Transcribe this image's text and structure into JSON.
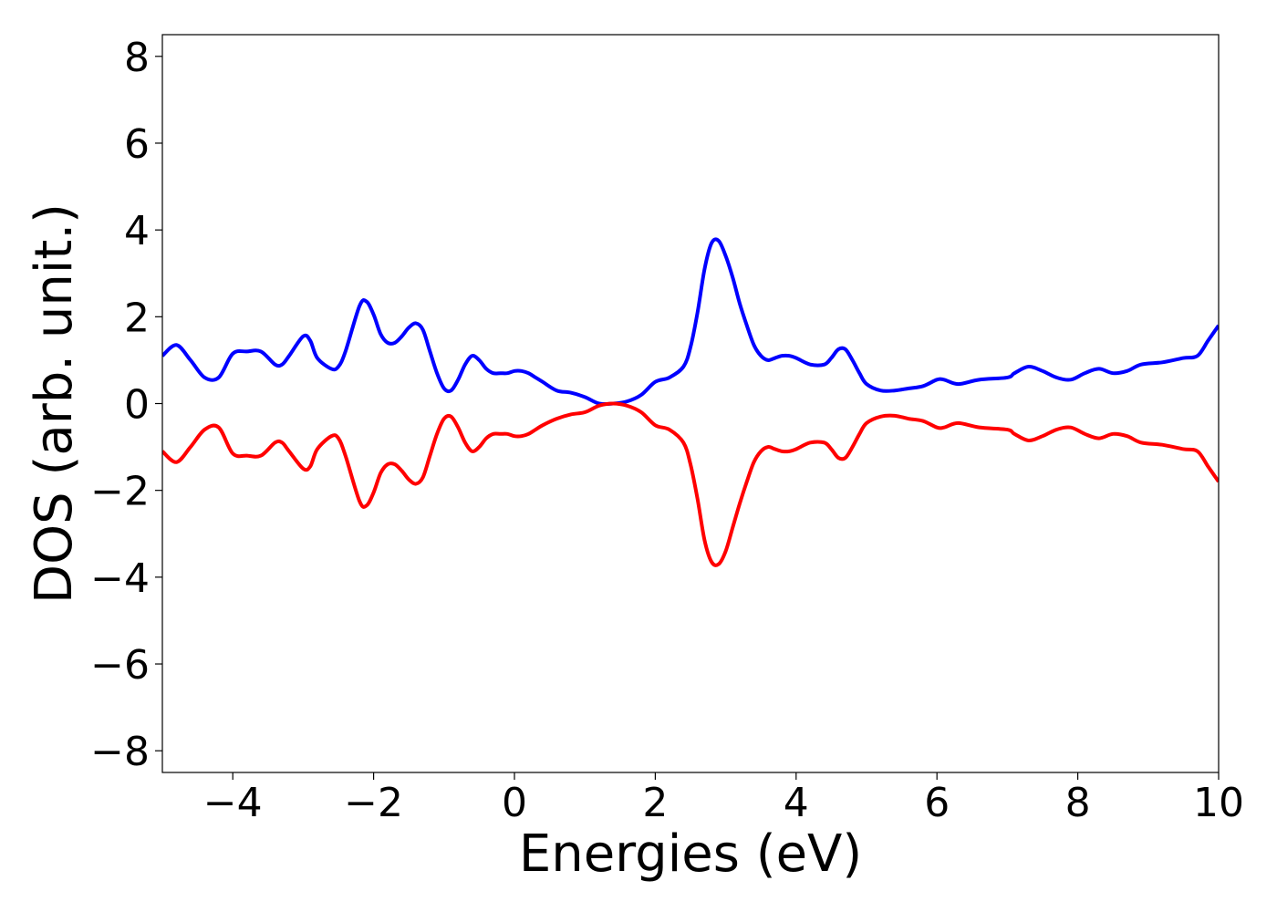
{
  "chart_data": {
    "type": "line",
    "title": "",
    "xlabel": "Energies (eV)",
    "ylabel": "DOS (arb. unit.)",
    "xlim": [
      -5,
      10
    ],
    "ylim": [
      -8.5,
      8.5
    ],
    "xticks": [
      -4,
      -2,
      0,
      2,
      4,
      6,
      8,
      10
    ],
    "xtick_labels": [
      "−4",
      "−2",
      "0",
      "2",
      "4",
      "6",
      "8",
      "10"
    ],
    "yticks": [
      8,
      6,
      4,
      2,
      0,
      -2,
      -4,
      -6,
      -8
    ],
    "ytick_labels": [
      "8",
      "6",
      "4",
      "2",
      "0",
      "−2",
      "−4",
      "−6",
      "−8"
    ],
    "grid": false,
    "legend": "none",
    "series": [
      {
        "color": "#0000ff",
        "x": [
          -5.0,
          -4.8,
          -4.6,
          -4.4,
          -4.2,
          -4.0,
          -3.8,
          -3.6,
          -3.4,
          -3.3,
          -3.2,
          -3.0,
          -2.9,
          -2.8,
          -2.6,
          -2.5,
          -2.4,
          -2.2,
          -2.1,
          -2.0,
          -1.9,
          -1.8,
          -1.7,
          -1.6,
          -1.5,
          -1.4,
          -1.3,
          -1.2,
          -1.1,
          -1.0,
          -0.9,
          -0.8,
          -0.7,
          -0.6,
          -0.5,
          -0.4,
          -0.3,
          -0.2,
          -0.1,
          0.0,
          0.1,
          0.2,
          0.3,
          0.4,
          0.6,
          0.8,
          1.0,
          1.2,
          1.4,
          1.6,
          1.8,
          2.0,
          2.2,
          2.4,
          2.5,
          2.6,
          2.7,
          2.8,
          2.9,
          3.0,
          3.1,
          3.2,
          3.3,
          3.4,
          3.5,
          3.6,
          3.7,
          3.8,
          3.9,
          4.0,
          4.2,
          4.4,
          4.5,
          4.6,
          4.7,
          4.8,
          4.9,
          5.0,
          5.2,
          5.4,
          5.6,
          5.8,
          6.0,
          6.1,
          6.3,
          6.6,
          7.0,
          7.1,
          7.3,
          7.5,
          7.7,
          7.9,
          8.1,
          8.3,
          8.5,
          8.7,
          8.9,
          9.2,
          9.5,
          9.7,
          9.85,
          10.0
        ],
        "y": [
          1.1,
          1.35,
          1.0,
          0.6,
          0.6,
          1.15,
          1.2,
          1.2,
          0.9,
          0.9,
          1.1,
          1.55,
          1.45,
          1.05,
          0.8,
          0.85,
          1.2,
          2.25,
          2.35,
          2.05,
          1.6,
          1.4,
          1.4,
          1.55,
          1.75,
          1.85,
          1.7,
          1.2,
          0.7,
          0.35,
          0.3,
          0.55,
          0.9,
          1.1,
          1.0,
          0.8,
          0.7,
          0.7,
          0.7,
          0.75,
          0.75,
          0.7,
          0.6,
          0.5,
          0.3,
          0.25,
          0.15,
          0.0,
          0.0,
          0.05,
          0.2,
          0.5,
          0.6,
          0.85,
          1.3,
          2.1,
          3.1,
          3.7,
          3.75,
          3.4,
          2.9,
          2.3,
          1.8,
          1.35,
          1.1,
          1.0,
          1.05,
          1.1,
          1.1,
          1.05,
          0.9,
          0.9,
          1.05,
          1.25,
          1.25,
          1.0,
          0.7,
          0.45,
          0.3,
          0.3,
          0.35,
          0.4,
          0.55,
          0.55,
          0.45,
          0.55,
          0.6,
          0.7,
          0.85,
          0.75,
          0.6,
          0.55,
          0.7,
          0.8,
          0.7,
          0.75,
          0.9,
          0.95,
          1.05,
          1.1,
          1.45,
          1.8
        ]
      },
      {
        "color": "#ff0000",
        "x": [
          -5.0,
          -4.8,
          -4.6,
          -4.4,
          -4.2,
          -4.0,
          -3.8,
          -3.6,
          -3.4,
          -3.3,
          -3.2,
          -3.0,
          -2.9,
          -2.8,
          -2.6,
          -2.5,
          -2.4,
          -2.2,
          -2.1,
          -2.0,
          -1.9,
          -1.8,
          -1.7,
          -1.6,
          -1.5,
          -1.4,
          -1.3,
          -1.2,
          -1.1,
          -1.0,
          -0.9,
          -0.8,
          -0.7,
          -0.6,
          -0.5,
          -0.4,
          -0.3,
          -0.2,
          -0.1,
          0.0,
          0.1,
          0.2,
          0.3,
          0.4,
          0.6,
          0.8,
          1.0,
          1.2,
          1.4,
          1.6,
          1.8,
          2.0,
          2.2,
          2.4,
          2.5,
          2.6,
          2.7,
          2.8,
          2.9,
          3.0,
          3.1,
          3.2,
          3.3,
          3.4,
          3.5,
          3.6,
          3.7,
          3.8,
          3.9,
          4.0,
          4.2,
          4.4,
          4.5,
          4.6,
          4.7,
          4.8,
          4.9,
          5.0,
          5.2,
          5.4,
          5.6,
          5.8,
          6.0,
          6.1,
          6.3,
          6.6,
          7.0,
          7.1,
          7.3,
          7.5,
          7.7,
          7.9,
          8.1,
          8.3,
          8.5,
          8.7,
          8.9,
          9.2,
          9.5,
          9.7,
          9.85,
          10.0
        ],
        "y": [
          -1.1,
          -1.35,
          -1.0,
          -0.6,
          -0.55,
          -1.15,
          -1.2,
          -1.2,
          -0.9,
          -0.9,
          -1.1,
          -1.5,
          -1.45,
          -1.05,
          -0.75,
          -0.8,
          -1.2,
          -2.25,
          -2.35,
          -2.05,
          -1.6,
          -1.4,
          -1.4,
          -1.55,
          -1.75,
          -1.85,
          -1.7,
          -1.2,
          -0.7,
          -0.35,
          -0.3,
          -0.55,
          -0.9,
          -1.1,
          -1.0,
          -0.8,
          -0.7,
          -0.7,
          -0.7,
          -0.75,
          -0.75,
          -0.7,
          -0.6,
          -0.5,
          -0.35,
          -0.25,
          -0.2,
          -0.05,
          0.0,
          -0.05,
          -0.2,
          -0.5,
          -0.6,
          -0.9,
          -1.4,
          -2.2,
          -3.15,
          -3.65,
          -3.7,
          -3.4,
          -2.85,
          -2.3,
          -1.8,
          -1.35,
          -1.1,
          -1.0,
          -1.05,
          -1.1,
          -1.1,
          -1.05,
          -0.9,
          -0.9,
          -1.05,
          -1.25,
          -1.25,
          -1.0,
          -0.7,
          -0.45,
          -0.3,
          -0.28,
          -0.35,
          -0.4,
          -0.55,
          -0.55,
          -0.45,
          -0.55,
          -0.6,
          -0.7,
          -0.85,
          -0.75,
          -0.6,
          -0.55,
          -0.7,
          -0.8,
          -0.7,
          -0.75,
          -0.9,
          -0.95,
          -1.05,
          -1.1,
          -1.45,
          -1.8
        ]
      }
    ]
  }
}
